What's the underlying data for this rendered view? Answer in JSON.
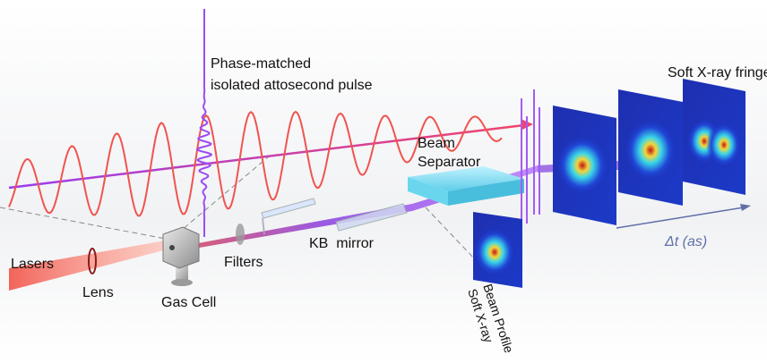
{
  "labels": {
    "pulse": [
      "Phase-matched",
      "isolated attosecond pulse"
    ],
    "beam_separator": [
      "Beam",
      "Separator"
    ],
    "fringes": "Soft X-ray fringes",
    "lasers": "Lasers",
    "lens": "Lens",
    "gas_cell": "Gas Cell",
    "filters": "Filters",
    "kb_mirror": "KB  mirror",
    "profile": [
      "Soft X-ray",
      "Beam Profile"
    ],
    "delay": "Δt (as)"
  }
}
